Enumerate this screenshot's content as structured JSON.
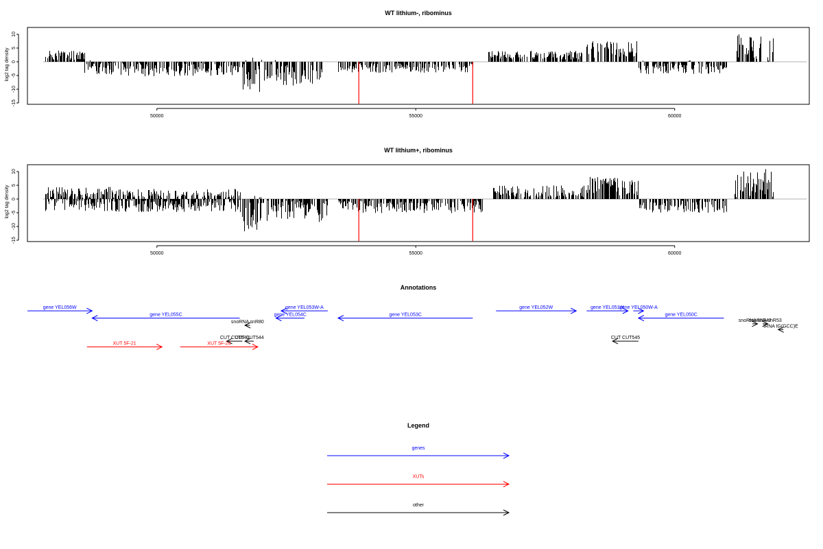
{
  "chart_data": {
    "type": "bar",
    "x_domain": [
      47500,
      62600
    ],
    "x_ticks": [
      50000,
      55000,
      60000
    ],
    "y_ticks": [
      10,
      5,
      0,
      -5,
      -10,
      -15
    ],
    "ylim": [
      -15.5,
      12.5
    ],
    "panels": [
      {
        "title": "WT lithium-, ribominus",
        "ylabel": "log2 tag density",
        "segments": [
          {
            "start": 47850,
            "end": 48600,
            "mean": 2.6,
            "amp": 2.0,
            "seed": 11
          },
          {
            "start": 48600,
            "end": 49100,
            "mean": -2.0,
            "amp": 2.5,
            "seed": 12
          },
          {
            "start": 49100,
            "end": 51600,
            "mean": -2.5,
            "amp": 2.8,
            "seed": 13
          },
          {
            "start": 51650,
            "end": 52000,
            "mean": -4.5,
            "amp": 6.5,
            "seed": 14
          },
          {
            "start": 52000,
            "end": 52400,
            "mean": -3.0,
            "amp": 4.0,
            "seed": 15
          },
          {
            "start": 52400,
            "end": 53200,
            "mean": -5.0,
            "amp": 4.0,
            "seed": 16
          },
          {
            "start": 53500,
            "end": 56100,
            "mean": -2.0,
            "amp": 2.0,
            "seed": 17
          },
          {
            "start": 56400,
            "end": 58200,
            "mean": 2.4,
            "amp": 1.6,
            "seed": 18
          },
          {
            "start": 58300,
            "end": 59300,
            "mean": 4.5,
            "amp": 3.0,
            "seed": 19
          },
          {
            "start": 59300,
            "end": 61000,
            "mean": -2.0,
            "amp": 2.5,
            "seed": 20
          },
          {
            "start": 61150,
            "end": 61900,
            "mean": 5.0,
            "amp": 5.0,
            "seed": 21
          }
        ],
        "red_lines_x": [
          53900,
          56100
        ]
      },
      {
        "title": "WT lithium+, ribominus",
        "ylabel": "log2 tag density",
        "segments": [
          {
            "start": 47850,
            "end": 49200,
            "mean": 1.8,
            "amp": 2.6,
            "seed": 31
          },
          {
            "start": 47850,
            "end": 49200,
            "mean": -1.8,
            "amp": 2.6,
            "seed": 32
          },
          {
            "start": 49200,
            "end": 51600,
            "mean": 1.2,
            "amp": 2.5,
            "seed": 33
          },
          {
            "start": 49200,
            "end": 51600,
            "mean": -2.3,
            "amp": 2.5,
            "seed": 34
          },
          {
            "start": 51650,
            "end": 52000,
            "mean": -5.0,
            "amp": 7.0,
            "seed": 35
          },
          {
            "start": 52000,
            "end": 53300,
            "mean": -4.5,
            "amp": 4.0,
            "seed": 36
          },
          {
            "start": 53500,
            "end": 56300,
            "mean": -2.8,
            "amp": 2.4,
            "seed": 37
          },
          {
            "start": 56500,
            "end": 58300,
            "mean": 2.8,
            "amp": 2.2,
            "seed": 38
          },
          {
            "start": 58300,
            "end": 59300,
            "mean": 4.8,
            "amp": 3.5,
            "seed": 39
          },
          {
            "start": 59300,
            "end": 61000,
            "mean": -2.5,
            "amp": 2.5,
            "seed": 40
          },
          {
            "start": 61150,
            "end": 61900,
            "mean": 5.5,
            "amp": 5.5,
            "seed": 41
          }
        ],
        "red_lines_x": [
          53900,
          56100
        ]
      }
    ],
    "annotations_title": "Annotations",
    "annotations": [
      {
        "label": "gene YEL056W",
        "start": 47500,
        "end": 48750,
        "row": 0,
        "dir": "right",
        "kind": "genes"
      },
      {
        "label": "gene YEL055C",
        "start": 48750,
        "end": 51600,
        "row": 1,
        "dir": "left",
        "kind": "genes"
      },
      {
        "label": "gene YEL053W-A",
        "start": 52400,
        "end": 53300,
        "row": 0,
        "dir": "left",
        "kind": "genes"
      },
      {
        "label": "gene YEL054C",
        "start": 52300,
        "end": 52850,
        "row": 1,
        "dir": "left",
        "kind": "genes"
      },
      {
        "label": "gene YEL053C",
        "start": 53500,
        "end": 56100,
        "row": 1,
        "dir": "left",
        "kind": "genes"
      },
      {
        "label": "gene YEL052W",
        "start": 56550,
        "end": 58100,
        "row": 0,
        "dir": "right",
        "kind": "genes"
      },
      {
        "label": "gene YEL051W",
        "start": 58300,
        "end": 59100,
        "row": 0,
        "dir": "right",
        "kind": "genes"
      },
      {
        "label": "gene YEL050W-A",
        "start": 59200,
        "end": 59400,
        "row": 0,
        "dir": "right",
        "kind": "genes"
      },
      {
        "label": "gene YEL050C",
        "start": 59300,
        "end": 60950,
        "row": 1,
        "dir": "left",
        "kind": "genes"
      },
      {
        "label": "snoRNA snR80",
        "start": 51700,
        "end": 51800,
        "row": 2,
        "dir": "left",
        "kind": "other"
      },
      {
        "label": "snoRNA snR47",
        "start": 61500,
        "end": 61600,
        "row": 1.8,
        "dir": "right",
        "kind": "other"
      },
      {
        "label": "snoRNA snR53",
        "start": 61700,
        "end": 61800,
        "row": 1.8,
        "dir": "right",
        "kind": "other"
      },
      {
        "label": "tRNA tG(GCC)E",
        "start": 62000,
        "end": 62100,
        "row": 2.6,
        "dir": "left",
        "kind": "other"
      },
      {
        "label": "CUT CUT543",
        "start": 51350,
        "end": 51650,
        "row": 4.2,
        "dir": "left",
        "kind": "other"
      },
      {
        "label": "CUT CUT544",
        "start": 51700,
        "end": 51870,
        "row": 4.2,
        "dir": "left",
        "kind": "other"
      },
      {
        "label": "CUT CUT545",
        "start": 58800,
        "end": 59300,
        "row": 4.2,
        "dir": "left",
        "kind": "other"
      },
      {
        "label": "XUT 5F-21",
        "start": 48650,
        "end": 50100,
        "row": 5,
        "dir": "right",
        "kind": "XUTs"
      },
      {
        "label": "XUT 5F-24",
        "start": 50450,
        "end": 51950,
        "row": 5,
        "dir": "right",
        "kind": "XUTs"
      }
    ],
    "legend_title": "Legend",
    "legend": [
      {
        "label": "genes",
        "kind": "genes"
      },
      {
        "label": "XUTs",
        "kind": "XUTs"
      },
      {
        "label": "other",
        "kind": "other"
      }
    ],
    "colors": {
      "genes": "#0000ff",
      "XUTs": "#ff0000",
      "other": "#000000",
      "red_marker": "#ff0000",
      "zero_line": "#999999"
    }
  }
}
